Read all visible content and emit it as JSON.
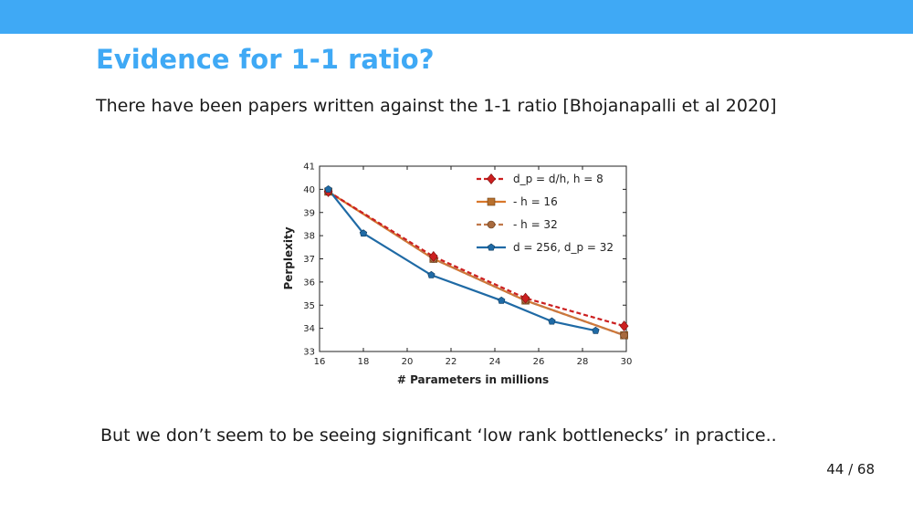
{
  "slide": {
    "title": "Evidence for 1-1 ratio?",
    "line1": "There have been papers written against the 1-1 ratio [Bhojanapalli et al 2020]",
    "line2": "But we don’t seem to be seeing significant ‘low rank bottlenecks’ in practice..",
    "page_current": "44",
    "page_total": "68"
  },
  "colors": {
    "accent": "#3fa9f5"
  },
  "chart_data": {
    "type": "line",
    "xlabel": "# Parameters in millions",
    "ylabel": "Perplexity",
    "xlim": [
      16,
      30
    ],
    "ylim": [
      33,
      41
    ],
    "xticks": [
      16,
      18,
      20,
      22,
      24,
      26,
      28,
      30
    ],
    "yticks": [
      33,
      34,
      35,
      36,
      37,
      38,
      39,
      40,
      41
    ],
    "legend_position": "top-right",
    "series": [
      {
        "name": "d_p = d/h, h = 8",
        "color": "#cc1f1f",
        "dash": "dashed",
        "marker": "diamond",
        "x": [
          16.4,
          21.2,
          25.4,
          29.9
        ],
        "y": [
          39.9,
          37.1,
          35.3,
          34.1
        ]
      },
      {
        "name": "- h = 16",
        "color": "#d9772b",
        "dash": "solid",
        "marker": "square",
        "x": [
          16.4,
          21.2,
          25.4,
          29.9
        ],
        "y": [
          39.9,
          37.0,
          35.2,
          33.7
        ]
      },
      {
        "name": "- h = 32",
        "color": "#c0784a",
        "dash": "dashed",
        "marker": "circle",
        "x": [
          16.4,
          21.2,
          25.4,
          29.9
        ],
        "y": [
          39.9,
          37.0,
          35.2,
          33.7
        ]
      },
      {
        "name": "d = 256, d_p = 32",
        "color": "#1f6aa5",
        "dash": "solid",
        "marker": "pentagon",
        "x": [
          16.4,
          18.0,
          21.1,
          24.3,
          26.6,
          28.6
        ],
        "y": [
          40.0,
          38.1,
          36.3,
          35.2,
          34.3,
          33.9
        ]
      }
    ]
  }
}
